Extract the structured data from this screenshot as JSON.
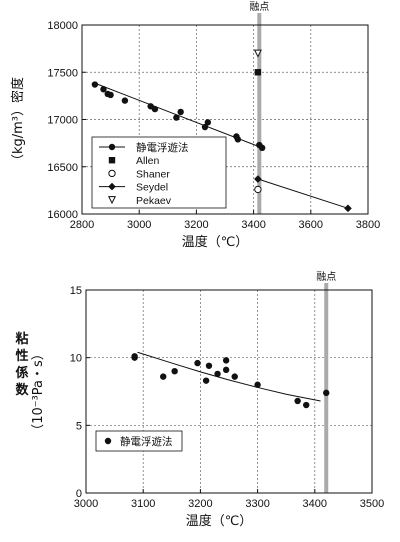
{
  "chart_data": [
    {
      "type": "scatter",
      "xlabel": "温度（℃）",
      "ylabel": "（kg/m³）密度",
      "xlim": [
        2800,
        3800
      ],
      "ylim": [
        16000,
        18000
      ],
      "xticks": [
        "2800",
        "3000",
        "3200",
        "3400",
        "3600",
        "3800"
      ],
      "yticks": [
        "16000",
        "16500",
        "17000",
        "17500",
        "18000"
      ],
      "grid": true,
      "legend_position": "bottom-left",
      "melting_point": {
        "label": "融点",
        "x": 3420
      },
      "series": [
        {
          "name": "静電浮遊法",
          "marker": "filled-circle",
          "x": [
            2845,
            2875,
            2890,
            2900,
            2950,
            3040,
            3055,
            3130,
            3145,
            3230,
            3240,
            3340,
            3345,
            3420,
            3430
          ],
          "y": [
            17370,
            17320,
            17270,
            17260,
            17200,
            17140,
            17110,
            17020,
            17080,
            16920,
            16970,
            16820,
            16790,
            16730,
            16700
          ],
          "fit_line": {
            "x": [
              2840,
              3430
            ],
            "y": [
              17390,
              16700
            ]
          }
        },
        {
          "name": "Allen",
          "marker": "filled-square",
          "x": [
            3415
          ],
          "y": [
            17500
          ]
        },
        {
          "name": "Shaner",
          "marker": "open-circle",
          "x": [
            3415
          ],
          "y": [
            16260
          ]
        },
        {
          "name": "Seydel",
          "marker": "filled-diamond",
          "x": [
            3415,
            3730
          ],
          "y": [
            16370,
            16060
          ],
          "fit_line": {
            "x": [
              3415,
              3730
            ],
            "y": [
              16370,
              16060
            ]
          }
        },
        {
          "name": "Pekaev",
          "marker": "open-triangle-down",
          "x": [
            3415
          ],
          "y": [
            17700
          ]
        }
      ]
    },
    {
      "type": "scatter",
      "xlabel": "温度（℃）",
      "ylabel_chars": [
        "粘",
        "性",
        "係",
        "数"
      ],
      "ylabel_unit": "（10⁻³Pa・s）",
      "xlim": [
        3000,
        3500
      ],
      "ylim": [
        0,
        15
      ],
      "xticks": [
        "3000",
        "3100",
        "3200",
        "3300",
        "3400",
        "3500"
      ],
      "yticks": [
        "0",
        "5",
        "10",
        "15"
      ],
      "grid": true,
      "legend_position": "bottom-left",
      "melting_point": {
        "label": "融点",
        "x": 3420
      },
      "series": [
        {
          "name": "静電浮遊法",
          "marker": "filled-circle",
          "x": [
            3085,
            3085,
            3135,
            3155,
            3195,
            3210,
            3215,
            3230,
            3245,
            3245,
            3260,
            3300,
            3370,
            3385,
            3420
          ],
          "y": [
            10.0,
            10.1,
            8.6,
            9.0,
            9.6,
            8.3,
            9.4,
            8.8,
            9.8,
            9.1,
            8.6,
            8.0,
            6.8,
            6.5,
            7.4
          ],
          "fit_line": {
            "x": [
              3090,
              3150,
              3200,
              3250,
              3300,
              3350,
              3410
            ],
            "y": [
              10.4,
              9.6,
              8.95,
              8.35,
              7.8,
              7.3,
              6.8
            ]
          }
        }
      ]
    }
  ]
}
